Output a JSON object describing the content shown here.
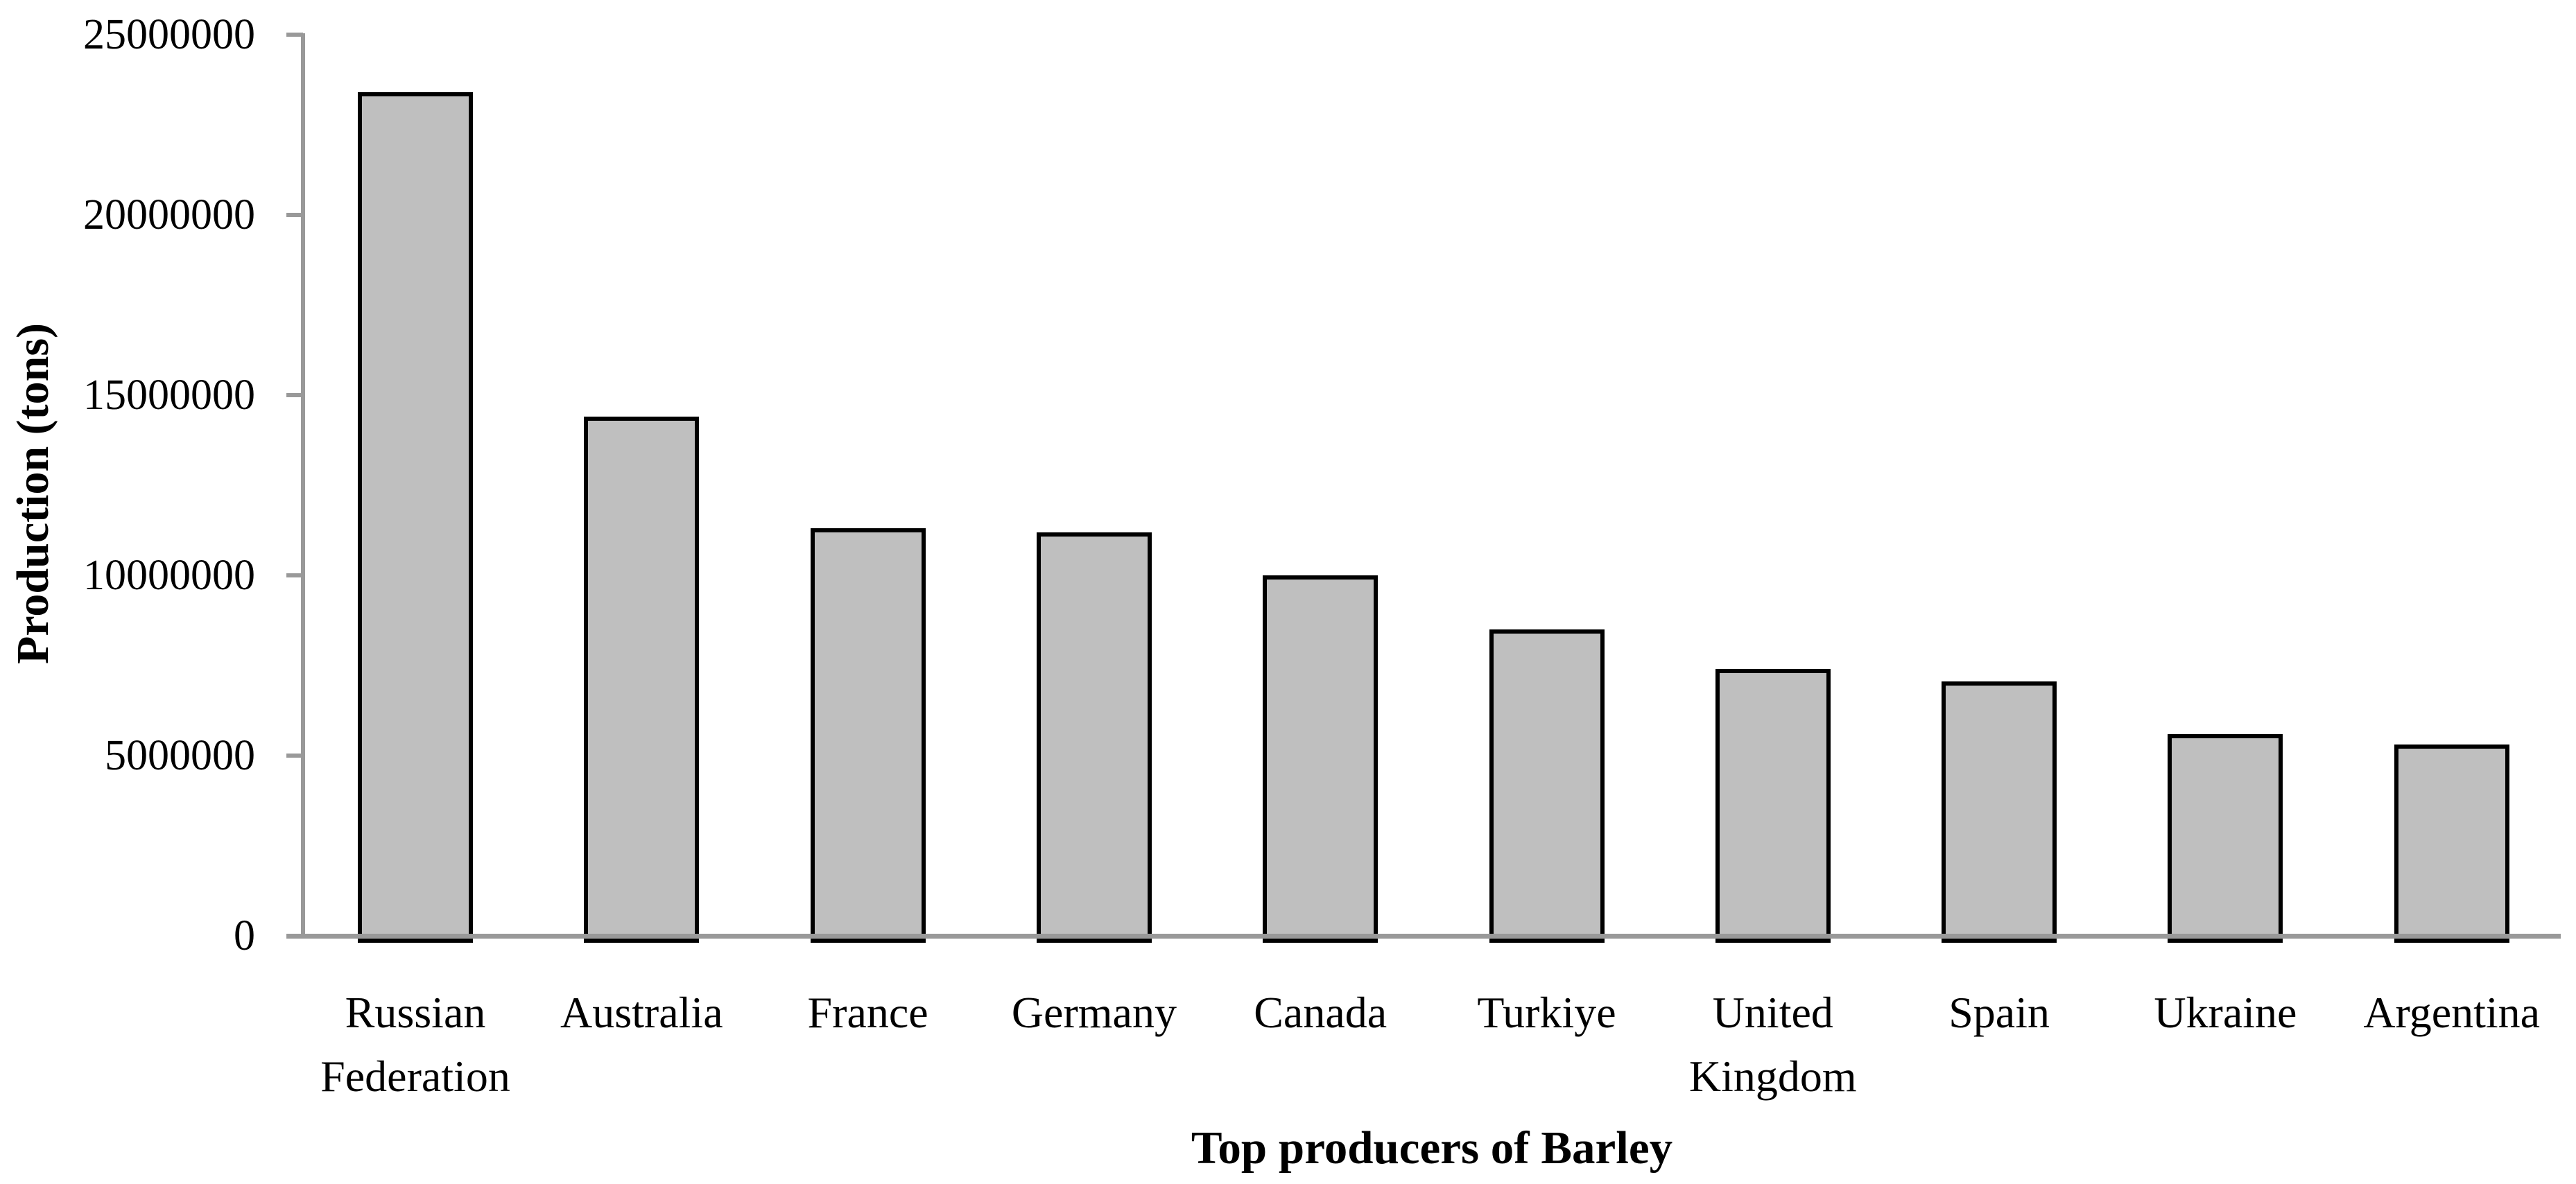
{
  "chart_data": {
    "type": "bar",
    "title": "",
    "xlabel": "Top producers of Barley",
    "ylabel": "Production (tons)",
    "categories": [
      "Russian Federation",
      "Australia",
      "France",
      "Germany",
      "Canada",
      "Turkiye",
      "United Kingdom",
      "Spain",
      "Ukraine",
      "Argentina"
    ],
    "values": [
      23400000,
      14400000,
      11300000,
      11200000,
      10000000,
      8500000,
      7400000,
      7050000,
      5600000,
      5300000
    ],
    "ylim": [
      0,
      25000000
    ],
    "ytick_interval": 5000000,
    "ytick_labels": [
      "0",
      "5000000",
      "10000000",
      "15000000",
      "20000000",
      "25000000"
    ],
    "grid": "off",
    "legend": "none",
    "colors": {
      "bar_fill": "#bfbfbf",
      "bar_border": "#000000",
      "axis_line": "#999999",
      "text": "#000000",
      "background": "#ffffff"
    }
  }
}
